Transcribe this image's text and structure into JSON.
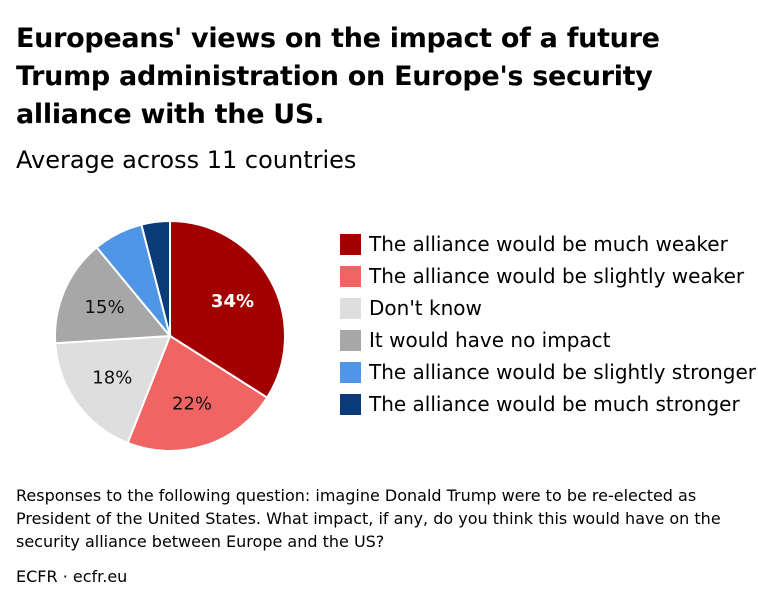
{
  "chart_data": {
    "type": "pie",
    "title": "Europeans' views on the impact of a future Trump administration on Europe's security alliance with the US.",
    "subtitle": "Average across 11 countries",
    "slices": [
      {
        "label": "The alliance would be much weaker",
        "value": 34,
        "display": "34%",
        "color": "#a30000",
        "label_color": "#ffffff"
      },
      {
        "label": "The alliance would be slightly weaker",
        "value": 22,
        "display": "22%",
        "color": "#f06464",
        "label_color": "#111111"
      },
      {
        "label": "Don't know",
        "value": 18,
        "display": "18%",
        "color": "#dedede",
        "label_color": "#111111"
      },
      {
        "label": "It would have no impact",
        "value": 15,
        "display": "15%",
        "color": "#a7a7a7",
        "label_color": "#111111"
      },
      {
        "label": "The alliance would be slightly stronger",
        "value": 7,
        "display": "",
        "color": "#5096e6",
        "label_color": "#111111"
      },
      {
        "label": "The alliance would be much stronger",
        "value": 4,
        "display": "",
        "color": "#0a3a78",
        "label_color": "#ffffff"
      }
    ],
    "legend_position": "right"
  },
  "note": "Responses to the following question: imagine Donald Trump were to be re-elected as President of the United States. What impact, if any, do you think this would have on the security alliance between Europe and the US?",
  "source": "ECFR · ecfr.eu"
}
